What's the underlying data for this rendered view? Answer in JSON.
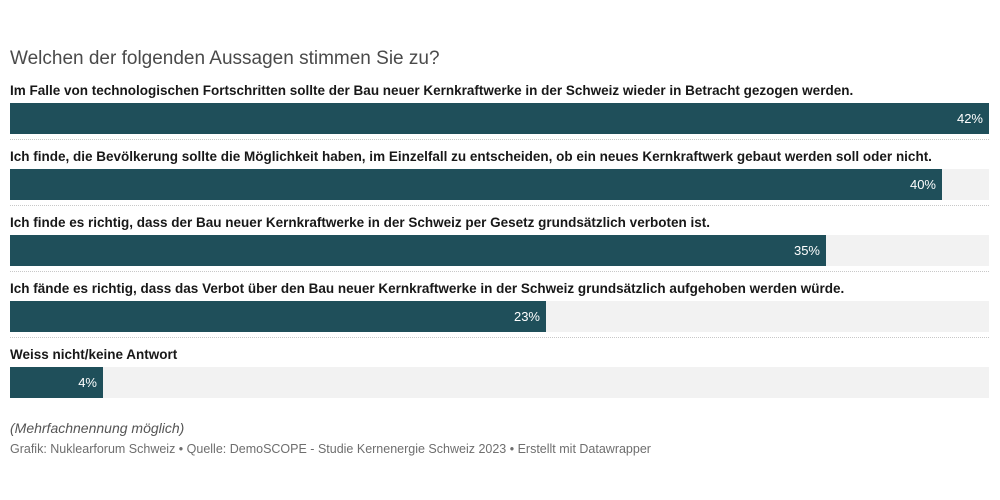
{
  "chart_data": {
    "type": "bar",
    "orientation": "horizontal",
    "title": "Welchen der folgenden Aussagen stimmen Sie zu?",
    "categories": [
      "Im Falle von technologischen Fortschritten sollte der Bau neuer Kernkraftwerke in der Schweiz wieder in Betracht gezogen werden.",
      "Ich finde, die Bevölkerung sollte die Möglichkeit haben, im Einzelfall zu entscheiden, ob ein neues Kernkraftwerk gebaut werden soll oder nicht.",
      "Ich finde es richtig, dass der Bau neuer Kernkraftwerke in der Schweiz per Gesetz grundsätzlich verboten ist.",
      "Ich fände es richtig, dass das Verbot über den Bau neuer Kernkraftwerke in der Schweiz grundsätzlich aufgehoben werden würde.",
      "Weiss nicht/keine Antwort"
    ],
    "values": [
      42,
      40,
      35,
      23,
      4
    ],
    "value_labels": [
      "42%",
      "40%",
      "35%",
      "23%",
      "4%"
    ],
    "xlim": [
      0,
      42
    ],
    "bar_color": "#1f4f5a",
    "track_color": "#f2f2f2",
    "grid": false,
    "legend": "none"
  },
  "note": "(Mehrfachnennung möglich)",
  "footer": "Grafik: Nuklearforum Schweiz • Quelle: DemoSCOPE - Studie Kernenergie Schweiz 2023 • Erstellt mit Datawrapper"
}
